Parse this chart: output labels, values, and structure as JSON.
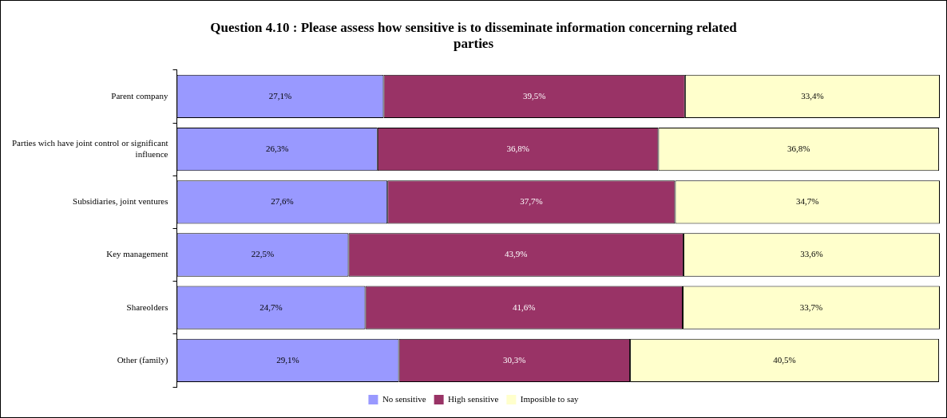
{
  "chart_data": {
    "type": "bar",
    "orientation": "horizontal",
    "stacked": true,
    "title": "Question 4.10 : Please assess how sensitive is to disseminate information concerning related parties",
    "categories": [
      "Parent company",
      "Parties wich have joint control or significant influence",
      "Subsidiaries, joint ventures",
      "Key management",
      "Shareolders",
      "Other (family)"
    ],
    "series": [
      {
        "name": "No sensitive",
        "color": "#9999ff",
        "values": [
          27.1,
          26.3,
          27.6,
          22.5,
          24.7,
          29.1
        ],
        "value_labels": [
          "27,1%",
          "26,3%",
          "27,6%",
          "22,5%",
          "24,7%",
          "29,1%"
        ]
      },
      {
        "name": "High sensitive",
        "color": "#993366",
        "values": [
          39.5,
          36.8,
          37.7,
          43.9,
          41.6,
          30.3
        ],
        "value_labels": [
          "39,5%",
          "36,8%",
          "37,7%",
          "43,9%",
          "41,6%",
          "30,3%"
        ]
      },
      {
        "name": "Imposible to say",
        "color": "#ffffcc",
        "values": [
          33.4,
          36.8,
          34.7,
          33.6,
          33.7,
          40.5
        ],
        "value_labels": [
          "33,4%",
          "36,8%",
          "34,7%",
          "33,6%",
          "33,7%",
          "40,5%"
        ]
      }
    ],
    "legend": "bottom",
    "grid": false,
    "tick_labels": "y"
  }
}
